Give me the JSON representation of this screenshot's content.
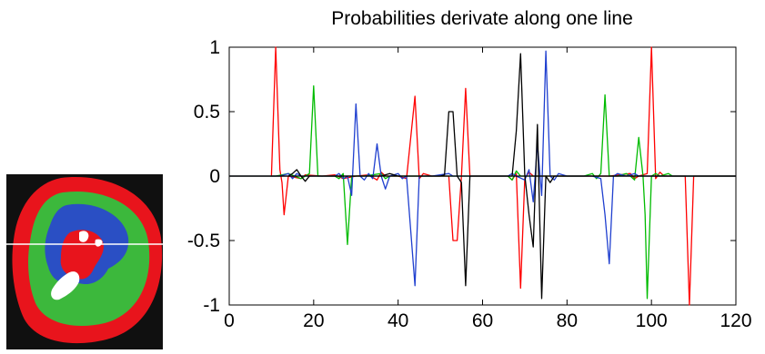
{
  "inset_image": {
    "colors": {
      "background": "#101010",
      "outer": "#e8141c",
      "middle": "#3cb83c",
      "inner": "#2a4fc4",
      "core": "#e8141c",
      "highlight": "#ffffff",
      "scanline": "#ffffff"
    }
  },
  "chart_data": {
    "type": "line",
    "title": "Probabilities derivate along one line",
    "xlabel": "",
    "ylabel": "",
    "xlim": [
      0,
      120
    ],
    "ylim": [
      -1,
      1
    ],
    "xticks": [
      0,
      20,
      40,
      60,
      80,
      100,
      120
    ],
    "yticks": [
      1,
      0.5,
      0,
      -0.5,
      -1
    ],
    "xtick_labels": [
      "0",
      "20",
      "40",
      "60",
      "80",
      "100",
      "120"
    ],
    "ytick_labels": [
      "1",
      "0.5",
      "0",
      "-0.5",
      "-1"
    ],
    "grid": false,
    "series": [
      {
        "color": "#ff0000",
        "points": [
          [
            0,
            0
          ],
          [
            10,
            0
          ],
          [
            11,
            1.0
          ],
          [
            12,
            0.05
          ],
          [
            12.5,
            -0.05
          ],
          [
            13,
            -0.3
          ],
          [
            14,
            0
          ],
          [
            17,
            -0.02
          ],
          [
            18,
            0.01
          ],
          [
            22,
            0
          ],
          [
            25,
            0.01
          ],
          [
            27,
            -0.02
          ],
          [
            30,
            0
          ],
          [
            33,
            0.01
          ],
          [
            35,
            -0.03
          ],
          [
            36,
            0.03
          ],
          [
            37,
            0
          ],
          [
            40,
            0
          ],
          [
            42,
            -0.02
          ],
          [
            44,
            0.62
          ],
          [
            45,
            -0.02
          ],
          [
            46,
            0.02
          ],
          [
            48,
            0
          ],
          [
            52,
            0
          ],
          [
            53,
            -0.5
          ],
          [
            54,
            -0.5
          ],
          [
            55,
            0
          ],
          [
            56,
            0.68
          ],
          [
            57,
            0
          ],
          [
            60,
            0
          ],
          [
            66,
            0
          ],
          [
            67,
            -0.03
          ],
          [
            68,
            0.02
          ],
          [
            69,
            -0.87
          ],
          [
            70,
            -0.02
          ],
          [
            71,
            0.03
          ],
          [
            72,
            0
          ],
          [
            80,
            0
          ],
          [
            90,
            0
          ],
          [
            95,
            0.02
          ],
          [
            96,
            -0.02
          ],
          [
            97,
            0
          ],
          [
            99,
            0.02
          ],
          [
            100,
            1.0
          ],
          [
            101,
            -0.02
          ],
          [
            102,
            0.03
          ],
          [
            103,
            0
          ],
          [
            108,
            0
          ],
          [
            109,
            -1.0
          ],
          [
            110,
            0
          ],
          [
            120,
            0
          ]
        ]
      },
      {
        "color": "#00bb00",
        "points": [
          [
            0,
            0
          ],
          [
            11,
            0
          ],
          [
            14,
            0.02
          ],
          [
            17,
            -0.02
          ],
          [
            19,
            0.02
          ],
          [
            20,
            0.7
          ],
          [
            21,
            0
          ],
          [
            25,
            0
          ],
          [
            26,
            -0.02
          ],
          [
            27,
            0.02
          ],
          [
            28,
            -0.53
          ],
          [
            29,
            0
          ],
          [
            32,
            0
          ],
          [
            36,
            0.02
          ],
          [
            37,
            -0.02
          ],
          [
            38,
            0
          ],
          [
            45,
            0
          ],
          [
            55,
            0
          ],
          [
            66,
            0
          ],
          [
            67,
            -0.03
          ],
          [
            68,
            0.04
          ],
          [
            69,
            0
          ],
          [
            75,
            0
          ],
          [
            84,
            0
          ],
          [
            86,
            0.02
          ],
          [
            87,
            -0.02
          ],
          [
            88,
            0.02
          ],
          [
            89,
            0.63
          ],
          [
            90,
            0
          ],
          [
            92,
            0
          ],
          [
            94,
            0.02
          ],
          [
            95,
            0
          ],
          [
            96,
            -0.03
          ],
          [
            97,
            0.3
          ],
          [
            98,
            0
          ],
          [
            98.5,
            -0.3
          ],
          [
            99,
            -0.95
          ],
          [
            100,
            0
          ],
          [
            101,
            0.02
          ],
          [
            102,
            0
          ],
          [
            104,
            0.02
          ],
          [
            105,
            0
          ],
          [
            120,
            0
          ]
        ]
      },
      {
        "color": "#1f3fcf",
        "points": [
          [
            0,
            0
          ],
          [
            12,
            0
          ],
          [
            14,
            0.02
          ],
          [
            15,
            -0.02
          ],
          [
            16,
            0.02
          ],
          [
            17,
            0
          ],
          [
            25,
            0
          ],
          [
            26,
            0.02
          ],
          [
            27,
            -0.02
          ],
          [
            28,
            0
          ],
          [
            29,
            -0.15
          ],
          [
            30,
            0.56
          ],
          [
            31,
            0
          ],
          [
            32,
            -0.03
          ],
          [
            33,
            0.02
          ],
          [
            34,
            -0.02
          ],
          [
            35,
            0.25
          ],
          [
            36,
            0
          ],
          [
            37,
            -0.1
          ],
          [
            38,
            0
          ],
          [
            40,
            0.02
          ],
          [
            41,
            -0.02
          ],
          [
            42,
            0
          ],
          [
            44,
            -0.85
          ],
          [
            45,
            0
          ],
          [
            48,
            0
          ],
          [
            52,
            0.02
          ],
          [
            53,
            0
          ],
          [
            57,
            0
          ],
          [
            66,
            0
          ],
          [
            67,
            0.02
          ],
          [
            68,
            0
          ],
          [
            70,
            -0.03
          ],
          [
            71,
            0.05
          ],
          [
            72,
            -0.2
          ],
          [
            73,
            0.25
          ],
          [
            74,
            -0.15
          ],
          [
            75,
            0.97
          ],
          [
            76,
            0
          ],
          [
            77,
            -0.03
          ],
          [
            78,
            0.02
          ],
          [
            80,
            0
          ],
          [
            86,
            0
          ],
          [
            88,
            -0.02
          ],
          [
            89,
            -0.3
          ],
          [
            90,
            -0.68
          ],
          [
            91,
            0
          ],
          [
            92,
            0.02
          ],
          [
            94,
            0
          ],
          [
            96,
            0.02
          ],
          [
            97,
            0
          ],
          [
            104,
            0
          ],
          [
            120,
            0
          ]
        ]
      },
      {
        "color": "#000000",
        "points": [
          [
            0,
            0
          ],
          [
            14,
            0
          ],
          [
            15,
            0.02
          ],
          [
            16,
            0.05
          ],
          [
            17,
            0
          ],
          [
            18,
            -0.04
          ],
          [
            19,
            0
          ],
          [
            22,
            0
          ],
          [
            30,
            0
          ],
          [
            36,
            0
          ],
          [
            38,
            0.02
          ],
          [
            40,
            0
          ],
          [
            50,
            0
          ],
          [
            51,
            0.01
          ],
          [
            52,
            0.5
          ],
          [
            53,
            0.5
          ],
          [
            54,
            0
          ],
          [
            55,
            -0.05
          ],
          [
            56,
            -0.85
          ],
          [
            57,
            0
          ],
          [
            60,
            0
          ],
          [
            67,
            0
          ],
          [
            68,
            0.35
          ],
          [
            69,
            0.95
          ],
          [
            70,
            0.01
          ],
          [
            71,
            -0.3
          ],
          [
            72,
            -0.55
          ],
          [
            73,
            0.4
          ],
          [
            74,
            -0.95
          ],
          [
            75,
            0
          ],
          [
            76,
            -0.05
          ],
          [
            77,
            0
          ],
          [
            120,
            0
          ]
        ]
      }
    ]
  }
}
